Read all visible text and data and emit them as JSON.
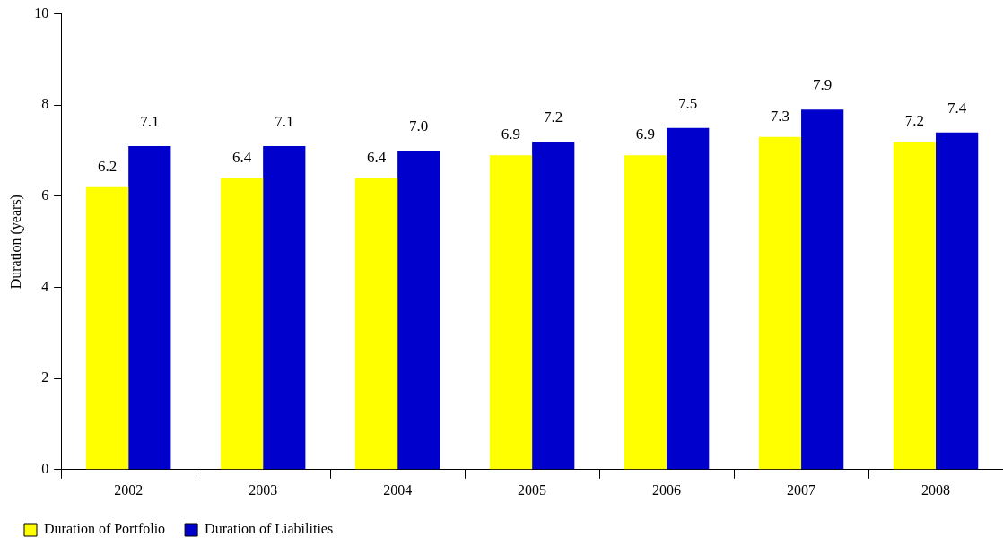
{
  "chart_data": {
    "type": "bar",
    "ylabel": "Duration (years)",
    "categories": [
      "2002",
      "2003",
      "2004",
      "2005",
      "2006",
      "2007",
      "2008"
    ],
    "series": [
      {
        "name": "Duration of Portfolio",
        "color": "#ffff00",
        "values": [
          6.2,
          6.4,
          6.4,
          6.9,
          6.9,
          7.3,
          7.2
        ],
        "value_labels": [
          "6.2",
          "6.4",
          "6.4",
          "6.9",
          "6.9",
          "7.3",
          "7.2"
        ]
      },
      {
        "name": "Duration of Liabilities",
        "color": "#0000cc",
        "values": [
          7.1,
          7.1,
          7.0,
          7.2,
          7.5,
          7.9,
          7.4
        ],
        "value_labels": [
          "7.1",
          "7.1",
          "7.0",
          "7.2",
          "7.5",
          "7.9",
          "7.4"
        ]
      }
    ],
    "ylim": [
      0,
      10
    ],
    "yticks": [
      0,
      2,
      4,
      6,
      8,
      10
    ],
    "grid": false,
    "legend": "bottom left"
  }
}
